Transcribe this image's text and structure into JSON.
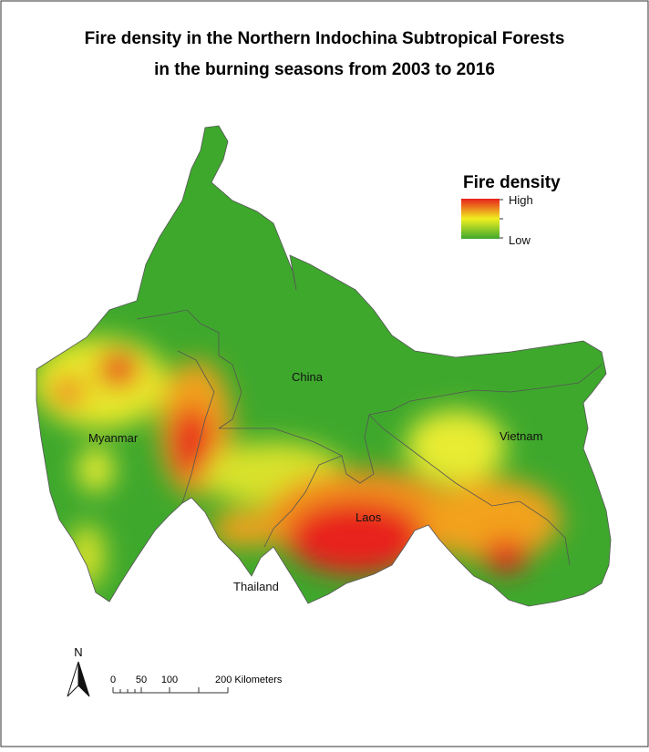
{
  "title": {
    "line1": "Fire density in the Northern Indochina Subtropical Forests",
    "line2": "in the burning seasons from 2003 to 2016"
  },
  "legend": {
    "title": "Fire density",
    "high": "High",
    "low": "Low"
  },
  "labels": {
    "myanmar": "Myanmar",
    "china": "China",
    "vietnam": "Vietnam",
    "laos": "Laos",
    "thailand": "Thailand"
  },
  "north_arrow": "N",
  "scale_bar": [
    "0",
    "50",
    "100",
    "200 Kilometers"
  ]
}
